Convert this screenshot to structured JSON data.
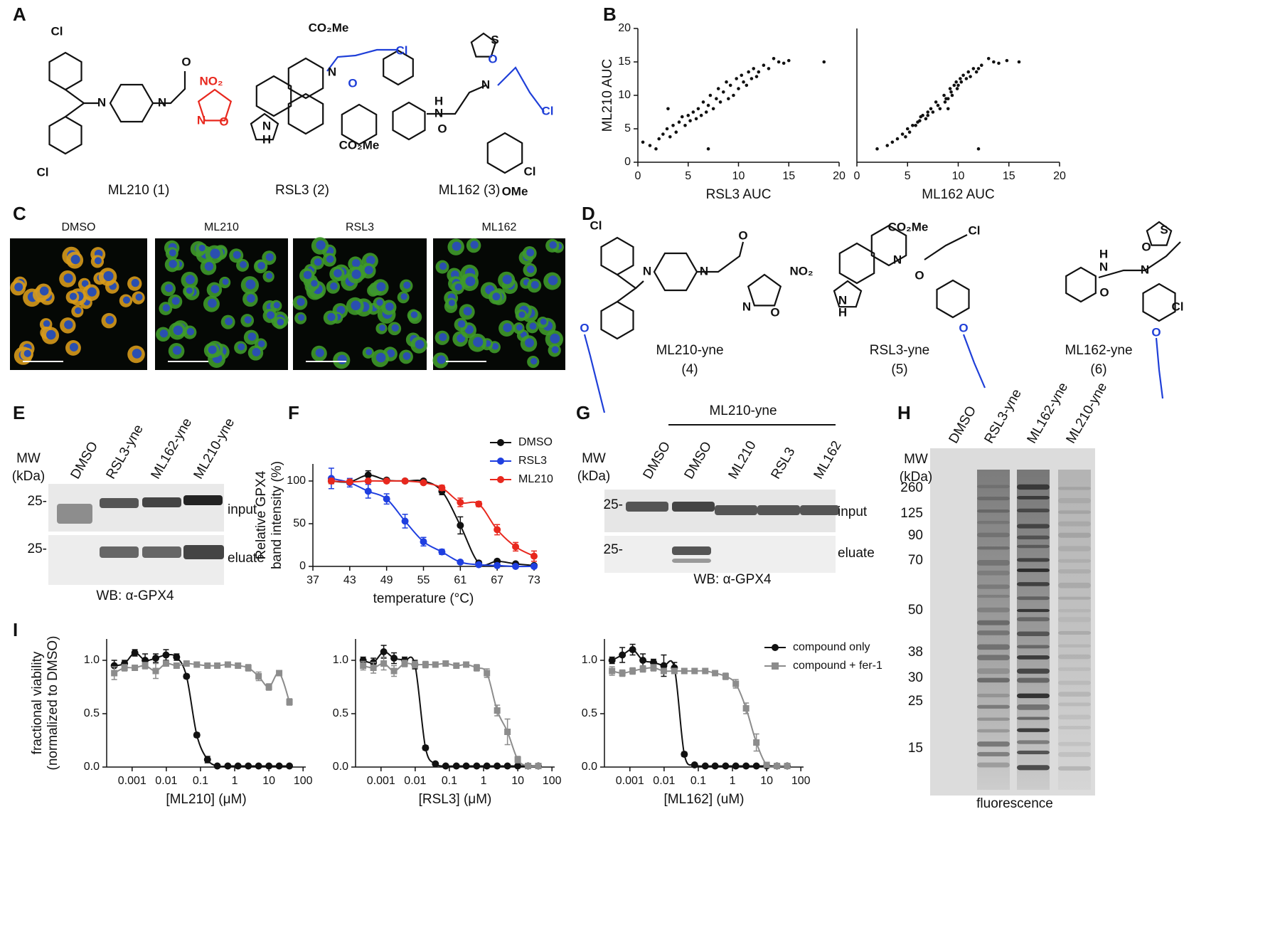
{
  "panels": {
    "letters": [
      "A",
      "B",
      "C",
      "D",
      "E",
      "F",
      "G",
      "H",
      "I"
    ],
    "A": {
      "compounds": [
        {
          "label": "ML210 (1)",
          "atoms": [
            {
              "text": "Cl",
              "color": "#111"
            },
            {
              "text": "Cl",
              "color": "#111"
            },
            {
              "text": "N",
              "color": "#111"
            },
            {
              "text": "N",
              "color": "#111"
            },
            {
              "text": "O",
              "color": "#111"
            },
            {
              "text": "NO₂",
              "color": "#e8281e"
            },
            {
              "text": "N",
              "color": "#e8281e"
            },
            {
              "text": "O",
              "color": "#e8281e"
            }
          ]
        },
        {
          "label": "RSL3 (2)",
          "atoms": [
            {
              "text": "CO₂Me",
              "color": "#111"
            },
            {
              "text": "Cl",
              "color": "#1f3fd8"
            },
            {
              "text": "N",
              "color": "#111"
            },
            {
              "text": "O",
              "color": "#1f3fd8"
            },
            {
              "text": "N",
              "color": "#111"
            },
            {
              "text": "H",
              "color": "#111"
            },
            {
              "text": "CO₂Me",
              "color": "#111"
            }
          ]
        },
        {
          "label": "ML162 (3)",
          "atoms": [
            {
              "text": "S",
              "color": "#111"
            },
            {
              "text": "O",
              "color": "#1f3fd8"
            },
            {
              "text": "Cl",
              "color": "#1f3fd8"
            },
            {
              "text": "H",
              "color": "#111"
            },
            {
              "text": "N",
              "color": "#111"
            },
            {
              "text": "N",
              "color": "#111"
            },
            {
              "text": "O",
              "color": "#111"
            },
            {
              "text": "Cl",
              "color": "#111"
            },
            {
              "text": "OMe",
              "color": "#111"
            }
          ]
        }
      ]
    },
    "C": {
      "images": [
        "DMSO",
        "ML210",
        "RSL3",
        "ML162"
      ]
    },
    "D": {
      "compounds": [
        {
          "name": "ML210-yne",
          "number": "(4)",
          "atoms": [
            {
              "text": "Cl",
              "color": "#111"
            },
            {
              "text": "N",
              "color": "#111"
            },
            {
              "text": "N",
              "color": "#111"
            },
            {
              "text": "O",
              "color": "#111"
            },
            {
              "text": "NO₂",
              "color": "#111"
            },
            {
              "text": "N",
              "color": "#111"
            },
            {
              "text": "O",
              "color": "#111"
            },
            {
              "text": "O",
              "color": "#1f3fd8"
            }
          ]
        },
        {
          "name": "RSL3-yne",
          "number": "(5)",
          "atoms": [
            {
              "text": "CO₂Me",
              "color": "#111"
            },
            {
              "text": "Cl",
              "color": "#111"
            },
            {
              "text": "N",
              "color": "#111"
            },
            {
              "text": "O",
              "color": "#111"
            },
            {
              "text": "N",
              "color": "#111"
            },
            {
              "text": "H",
              "color": "#111"
            },
            {
              "text": "O",
              "color": "#1f3fd8"
            }
          ]
        },
        {
          "name": "ML162-yne",
          "number": "(6)",
          "atoms": [
            {
              "text": "S",
              "color": "#111"
            },
            {
              "text": "H",
              "color": "#111"
            },
            {
              "text": "N",
              "color": "#111"
            },
            {
              "text": "N",
              "color": "#111"
            },
            {
              "text": "O",
              "color": "#111"
            },
            {
              "text": "O",
              "color": "#111"
            },
            {
              "text": "Cl",
              "color": "#111"
            },
            {
              "text": "O",
              "color": "#1f3fd8"
            }
          ]
        }
      ]
    },
    "E": {
      "mw": [
        "MW",
        "(kDa)"
      ],
      "lanes": [
        "DMSO",
        "RSL3-yne",
        "ML162-yne",
        "ML210-yne"
      ],
      "markers": [
        "25-",
        "25-"
      ],
      "blots": [
        "input",
        "eluate"
      ],
      "caption": "WB: α-GPX4"
    },
    "G": {
      "mw": [
        "MW",
        "(kDa)"
      ],
      "header": "ML210-yne",
      "lanes": [
        "DMSO",
        "DMSO",
        "ML210",
        "RSL3",
        "ML162"
      ],
      "markers": [
        "25-",
        "25-"
      ],
      "blots": [
        "input",
        "eluate"
      ],
      "caption": "WB: α-GPX4"
    },
    "H": {
      "mw": [
        "MW",
        "(kDa)"
      ],
      "lanes": [
        "DMSO",
        "RSL3-yne",
        "ML162-yne",
        "ML210-yne"
      ],
      "markers": [
        "260",
        "125",
        "90",
        "70",
        "50",
        "38",
        "30",
        "25",
        "15"
      ],
      "caption": "fluorescence"
    }
  },
  "chart_data": [
    {
      "type": "scatter",
      "xlabel": "RSL3 AUC",
      "ylabel": [
        "ML210 AUC"
      ],
      "color": "#111",
      "xlim": [
        0,
        20
      ],
      "ylim": [
        0,
        20
      ],
      "xticks": [
        0,
        5,
        10,
        15,
        20
      ],
      "yticks": [
        0,
        5,
        10,
        15,
        20
      ],
      "x": [
        0.5,
        1.2,
        1.8,
        2.1,
        2.5,
        2.9,
        3.2,
        3.5,
        3.8,
        4.1,
        4.4,
        4.7,
        5.0,
        5.2,
        5.5,
        5.8,
        6.0,
        6.3,
        6.5,
        6.8,
        7.0,
        7.2,
        7.5,
        7.8,
        8.0,
        8.2,
        8.5,
        8.8,
        9.0,
        9.2,
        9.5,
        9.8,
        10.0,
        10.3,
        10.5,
        10.8,
        11.0,
        11.3,
        11.5,
        11.8,
        12.0,
        12.5,
        13.0,
        13.5,
        14.0,
        14.5,
        15.0,
        3.0,
        7.0,
        18.5
      ],
      "values": [
        3.0,
        2.5,
        2.0,
        3.5,
        4.2,
        5.0,
        3.8,
        5.5,
        4.5,
        6.0,
        6.8,
        5.5,
        7.0,
        6.2,
        7.5,
        6.5,
        8.0,
        7.0,
        9.0,
        7.5,
        8.5,
        10.0,
        8.0,
        9.5,
        11.0,
        9.0,
        10.5,
        12.0,
        9.5,
        11.5,
        10.0,
        12.5,
        11.0,
        13.0,
        12.0,
        11.5,
        13.5,
        12.5,
        14.0,
        12.8,
        13.5,
        14.5,
        14.0,
        15.5,
        15.0,
        14.8,
        15.2,
        8.0,
        2.0,
        15.0
      ]
    },
    {
      "type": "scatter",
      "xlabel": "ML162 AUC",
      "color": "#111",
      "xlim": [
        0,
        20
      ],
      "ylim": [
        0,
        20
      ],
      "xticks": [
        0,
        5,
        10,
        15,
        20
      ],
      "x": [
        3.5,
        3.0,
        2.0,
        4.0,
        4.5,
        5.0,
        4.8,
        5.5,
        5.2,
        6.0,
        6.3,
        5.8,
        6.5,
        6.2,
        7.0,
        6.8,
        7.3,
        7.0,
        7.8,
        7.5,
        8.0,
        8.6,
        8.2,
        8.8,
        9.2,
        8.7,
        9.3,
        9.8,
        9.0,
        9.6,
        9.4,
        10.2,
        9.9,
        10.5,
        10.3,
        10.0,
        11.0,
        10.8,
        11.5,
        11.2,
        11.8,
        12.3,
        12.0,
        13.0,
        13.5,
        14.0,
        14.8,
        9.0,
        12.0,
        16.0
      ],
      "values": [
        3.0,
        2.5,
        2.0,
        3.5,
        4.2,
        5.0,
        3.8,
        5.5,
        4.5,
        6.0,
        6.8,
        5.5,
        7.0,
        6.2,
        7.5,
        6.5,
        8.0,
        7.0,
        9.0,
        7.5,
        8.5,
        10.0,
        8.0,
        9.5,
        11.0,
        9.0,
        10.5,
        12.0,
        9.5,
        11.5,
        10.0,
        12.5,
        11.0,
        13.0,
        12.0,
        11.5,
        13.5,
        12.5,
        14.0,
        12.8,
        13.5,
        14.5,
        14.0,
        15.5,
        15.0,
        14.8,
        15.2,
        8.0,
        2.0,
        15.0
      ]
    },
    {
      "type": "line",
      "xlabel": "temperature (°C)",
      "ylabel": [
        "Relative GPX4",
        "band intensity (%)"
      ],
      "xlim": [
        37,
        73
      ],
      "ylim": [
        0,
        120
      ],
      "xticks": [
        37,
        43,
        49,
        55,
        61,
        67,
        73
      ],
      "yticks": [
        0,
        50,
        100
      ],
      "legend": "upper right",
      "x": [
        40,
        43,
        46,
        49,
        52,
        55,
        58,
        61,
        64,
        67,
        70,
        73
      ],
      "series": [
        {
          "name": "DMSO",
          "color": "#111111",
          "marker": "circle",
          "values": [
            100,
            99,
            107,
            101,
            100,
            100,
            88,
            48,
            4,
            6,
            3,
            1
          ],
          "errors": [
            3,
            2,
            5,
            2,
            2,
            2,
            4,
            10,
            2,
            2,
            1,
            1
          ]
        },
        {
          "name": "RSL3",
          "color": "#1f3fe0",
          "marker": "circle",
          "values": [
            103,
            98,
            88,
            79,
            53,
            29,
            17,
            5,
            2,
            1,
            0,
            0
          ],
          "errors": [
            12,
            5,
            8,
            6,
            8,
            5,
            3,
            2,
            1,
            1,
            1,
            1
          ]
        },
        {
          "name": "ML210",
          "color": "#e8281e",
          "marker": "circle",
          "values": [
            100,
            99,
            100,
            100,
            100,
            98,
            92,
            75,
            73,
            43,
            23,
            12
          ],
          "errors": [
            3,
            2,
            2,
            2,
            2,
            2,
            3,
            5,
            3,
            6,
            5,
            6
          ]
        }
      ]
    },
    {
      "type": "line",
      "xscale": "log",
      "xlabel": "[ML210] (μM)",
      "ylabel": [
        "fractional viability",
        "(normalized to DMSO)"
      ],
      "xlim": [
        0.00018,
        120
      ],
      "ylim": [
        0,
        1.2
      ],
      "xticks": [
        0.001,
        0.01,
        0.1,
        1,
        10,
        100
      ],
      "yticks": [
        {
          "value": 0,
          "label": "0.0"
        },
        {
          "value": 0.5,
          "label": "0.5"
        },
        {
          "value": 1,
          "label": "1.0"
        }
      ],
      "x": [
        0.0003,
        0.0006,
        0.0012,
        0.0024,
        0.0049,
        0.0098,
        0.02,
        0.039,
        0.078,
        0.16,
        0.31,
        0.63,
        1.25,
        2.5,
        5,
        10,
        20,
        40
      ],
      "series": [
        {
          "name": "compound only",
          "color": "#111111",
          "marker": "circle",
          "values": [
            0.95,
            0.97,
            1.07,
            1.0,
            1.02,
            1.05,
            1.03,
            0.85,
            0.3,
            0.07,
            0.01,
            0.01,
            0.01,
            0.01,
            0.01,
            0.01,
            0.01,
            0.01
          ],
          "errors": [
            0.05,
            0.03,
            0.03,
            0.06,
            0.04,
            0.05,
            0.03,
            0.02,
            0.02,
            0.03,
            0,
            0,
            0,
            0,
            0,
            0,
            0,
            0
          ]
        },
        {
          "name": "compound + fer-1",
          "color": "#8c8c8c",
          "marker": "square",
          "values": [
            0.88,
            0.93,
            0.93,
            0.95,
            0.9,
            0.97,
            0.95,
            0.97,
            0.96,
            0.95,
            0.95,
            0.96,
            0.95,
            0.93,
            0.85,
            0.75,
            0.88,
            0.61
          ],
          "errors": [
            0.06,
            0.03,
            0.02,
            0.03,
            0.07,
            0.02,
            0.02,
            0.02,
            0.02,
            0.02,
            0.02,
            0.02,
            0.02,
            0.03,
            0.04,
            0.03,
            0.02,
            0.03
          ]
        }
      ]
    },
    {
      "type": "line",
      "xscale": "log",
      "xlabel": "[RSL3] (μM)",
      "xlim": [
        0.00018,
        120
      ],
      "ylim": [
        0,
        1.2
      ],
      "xticks": [
        0.001,
        0.01,
        0.1,
        1,
        10,
        100
      ],
      "yticks": [
        {
          "value": 0,
          "label": "0.0"
        },
        {
          "value": 0.5,
          "label": "0.5"
        },
        {
          "value": 1,
          "label": "1.0"
        }
      ],
      "x": [
        0.0003,
        0.0006,
        0.0012,
        0.0024,
        0.0049,
        0.0098,
        0.02,
        0.039,
        0.078,
        0.16,
        0.31,
        0.63,
        1.25,
        2.5,
        5,
        10,
        20,
        40
      ],
      "series": [
        {
          "name": "compound only",
          "color": "#111111",
          "marker": "circle",
          "values": [
            1.0,
            0.98,
            1.08,
            1.02,
            1.0,
            0.96,
            0.18,
            0.03,
            0.01,
            0.01,
            0.01,
            0.01,
            0.01,
            0.01,
            0.01,
            0.01,
            0.01,
            0.01
          ],
          "errors": [
            0.03,
            0.04,
            0.06,
            0.05,
            0.03,
            0.04,
            0.02,
            0.01,
            0,
            0,
            0,
            0,
            0,
            0,
            0,
            0,
            0,
            0
          ]
        },
        {
          "name": "compound + fer-1",
          "color": "#8c8c8c",
          "marker": "square",
          "values": [
            0.95,
            0.93,
            0.97,
            0.9,
            0.97,
            0.96,
            0.96,
            0.96,
            0.97,
            0.95,
            0.96,
            0.93,
            0.88,
            0.53,
            0.33,
            0.07,
            0.01,
            0.01
          ],
          "errors": [
            0.04,
            0.05,
            0.06,
            0.05,
            0.03,
            0.03,
            0.03,
            0.02,
            0.02,
            0.02,
            0.02,
            0.03,
            0.04,
            0.05,
            0.12,
            0.03,
            0.01,
            0.01
          ]
        }
      ]
    },
    {
      "type": "line",
      "xscale": "log",
      "xlabel": "[ML162] (uM)",
      "legend": "upper right",
      "xlim": [
        0.00018,
        120
      ],
      "ylim": [
        0,
        1.2
      ],
      "xticks": [
        0.001,
        0.01,
        0.1,
        1,
        10,
        100
      ],
      "yticks": [
        {
          "value": 0,
          "label": "0.0"
        },
        {
          "value": 0.5,
          "label": "0.5"
        },
        {
          "value": 1,
          "label": "1.0"
        }
      ],
      "x": [
        0.0003,
        0.0006,
        0.0012,
        0.0024,
        0.0049,
        0.0098,
        0.02,
        0.039,
        0.078,
        0.16,
        0.31,
        0.63,
        1.25,
        2.5,
        5,
        10,
        20,
        40
      ],
      "series": [
        {
          "name": "compound only",
          "color": "#111111",
          "marker": "circle",
          "values": [
            1.0,
            1.05,
            1.1,
            1.0,
            0.98,
            0.95,
            0.93,
            0.12,
            0.02,
            0.01,
            0.01,
            0.01,
            0.01,
            0.01,
            0.01,
            0.01,
            0.01,
            0.01
          ],
          "errors": [
            0.03,
            0.07,
            0.05,
            0.06,
            0.03,
            0.1,
            0.05,
            0.02,
            0,
            0,
            0,
            0,
            0,
            0,
            0,
            0,
            0,
            0
          ]
        },
        {
          "name": "compound + fer-1",
          "color": "#8c8c8c",
          "marker": "square",
          "values": [
            0.9,
            0.88,
            0.9,
            0.92,
            0.93,
            0.9,
            0.9,
            0.9,
            0.9,
            0.9,
            0.88,
            0.85,
            0.78,
            0.55,
            0.23,
            0.02,
            0.01,
            0.01
          ],
          "errors": [
            0.04,
            0.03,
            0.03,
            0.03,
            0.03,
            0.02,
            0.02,
            0.02,
            0.02,
            0.02,
            0.02,
            0.03,
            0.04,
            0.05,
            0.08,
            0.01,
            0.01,
            0.01
          ]
        }
      ]
    }
  ]
}
